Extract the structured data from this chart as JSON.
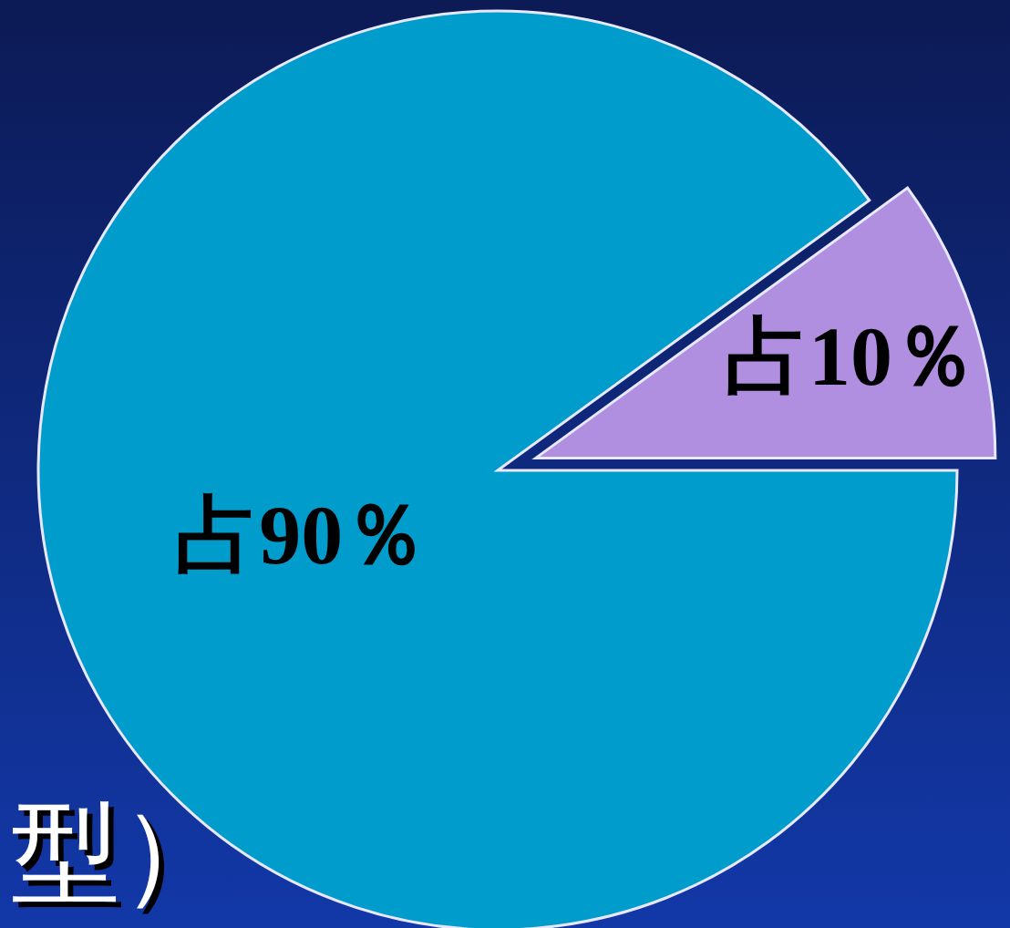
{
  "chart_data": {
    "type": "pie",
    "categories": [
      null,
      null
    ],
    "values": [
      10,
      90
    ],
    "colors": [
      "#b08fe0",
      "#009ccc"
    ],
    "value_labels": [
      "占10％",
      "占90％"
    ],
    "annotations": [
      "型）"
    ]
  }
}
